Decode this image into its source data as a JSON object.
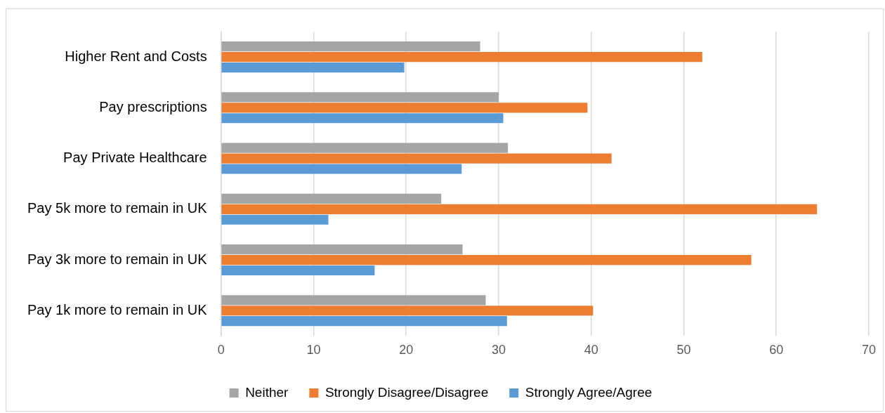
{
  "chart_data": {
    "type": "bar",
    "orientation": "horizontal",
    "categories": [
      "Higher Rent and Costs",
      "Pay prescriptions",
      "Pay Private Healthcare",
      "Pay 5k more to remain in UK",
      "Pay 3k more to remain in UK",
      "Pay 1k more to remain in UK"
    ],
    "series": [
      {
        "name": "Neither",
        "color": "#a5a5a5",
        "values": [
          28,
          30,
          31,
          23.8,
          26.1,
          28.6
        ]
      },
      {
        "name": "Strongly Disagree/Disagree",
        "color": "#ed7d31",
        "values": [
          52,
          39.6,
          42.2,
          64.4,
          57.3,
          40.2
        ]
      },
      {
        "name": "Strongly Agree/Agree",
        "color": "#5b9bd5",
        "values": [
          19.8,
          30.5,
          26,
          11.6,
          16.6,
          30.9
        ]
      }
    ],
    "xlim": [
      0,
      70
    ],
    "xticks": [
      0,
      10,
      20,
      30,
      40,
      50,
      60,
      70
    ],
    "grid": "x",
    "legend": "bottom"
  }
}
